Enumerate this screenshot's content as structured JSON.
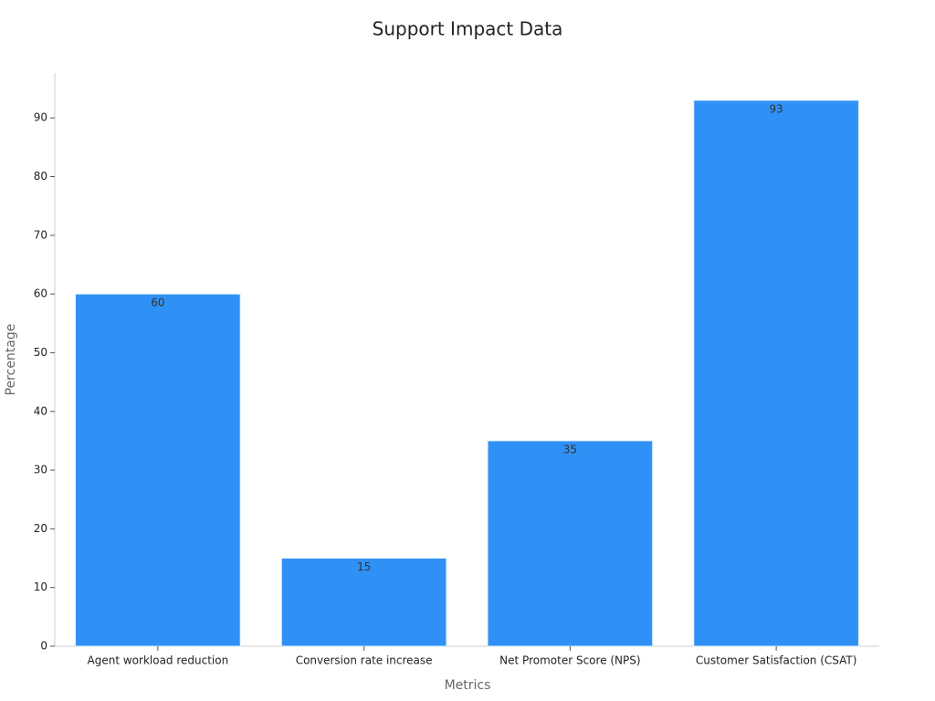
{
  "chart_data": {
    "type": "bar",
    "title": "Support Impact Data",
    "x_label": "Metrics",
    "y_label": "Percentage",
    "categories": [
      "Agent workload reduction",
      "Conversion rate increase",
      "Net Promoter Score (NPS)",
      "Customer Satisfaction (CSAT)"
    ],
    "values": [
      60,
      15,
      35,
      93
    ],
    "color": "#2f91f5",
    "ylim": [
      0,
      97.65
    ],
    "yticks": [
      0,
      10,
      20,
      30,
      40,
      50,
      60,
      70,
      80,
      90
    ],
    "grid": false
  }
}
